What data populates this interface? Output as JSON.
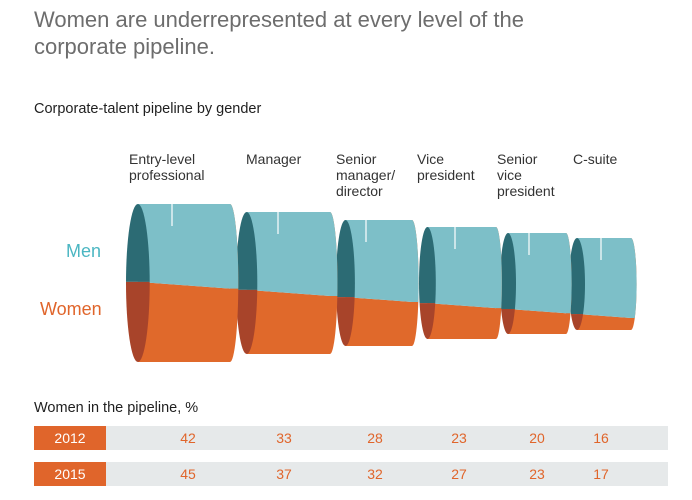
{
  "title": "Women are underrepresented at every level of the corporate pipeline.",
  "subtitle": "Corporate-talent pipeline by gender",
  "legend": {
    "men": "Men",
    "women": "Women"
  },
  "colors": {
    "men": "#7dbfc8",
    "men_dark": "#2c6b74",
    "women": "#e0692b",
    "women_dark": "#a8442a",
    "year_box": "#e0652b",
    "row_bg": "#e6e9ea"
  },
  "table": {
    "title": "Women in the pipeline, %",
    "rows": [
      {
        "year": "2012",
        "values": [
          "42",
          "33",
          "28",
          "23",
          "20",
          "16"
        ]
      },
      {
        "year": "2015",
        "values": [
          "45",
          "37",
          "32",
          "27",
          "23",
          "17"
        ]
      }
    ]
  },
  "chart_data": {
    "type": "table",
    "categories": [
      "Entry-level professional",
      "Manager",
      "Senior manager/ director",
      "Vice president",
      "Senior vice president",
      "C-suite"
    ],
    "series": [
      {
        "name": "2012",
        "values": [
          42,
          33,
          28,
          23,
          20,
          16
        ]
      },
      {
        "name": "2015",
        "values": [
          45,
          37,
          32,
          27,
          23,
          17
        ]
      }
    ],
    "stage_labels": [
      [
        "Entry-level",
        "professional"
      ],
      [
        "Manager"
      ],
      [
        "Senior",
        "manager/",
        "director"
      ],
      [
        "Vice",
        "president"
      ],
      [
        "Senior",
        "vice",
        "president"
      ],
      [
        "C-suite"
      ]
    ]
  }
}
